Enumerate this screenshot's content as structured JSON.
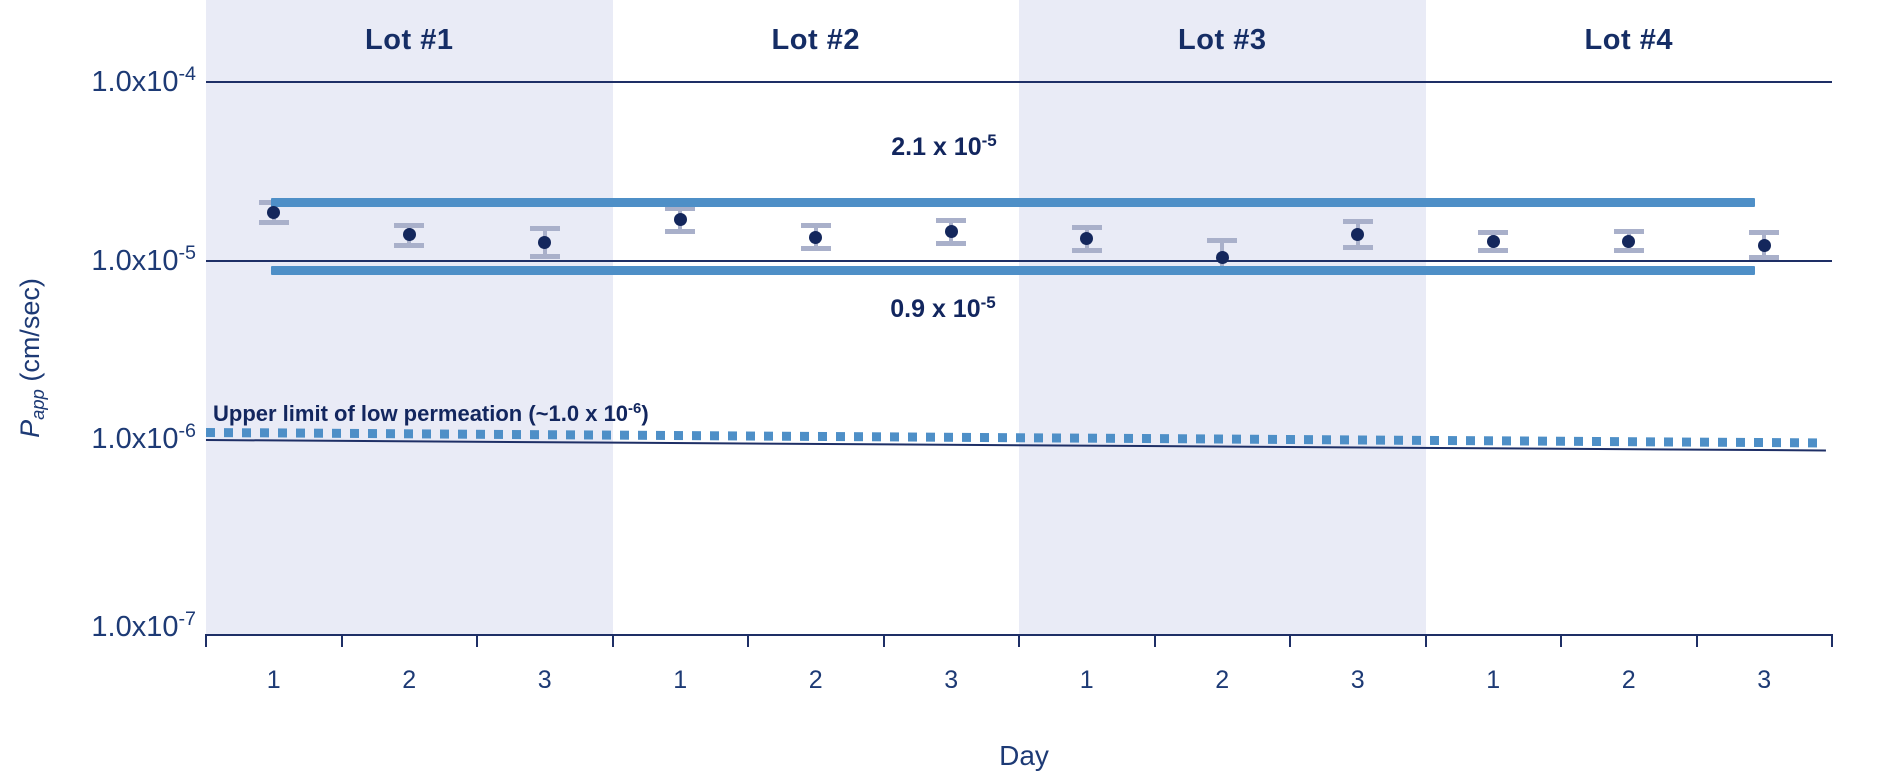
{
  "colors": {
    "background": "#ffffff",
    "band_lavender": "#e9ebf6",
    "gridline_navy": "#1e2f66",
    "text_navy": "#16306b",
    "bold_navy": "#12265e",
    "line_blue": "#4e8fc7",
    "error_gray": "#a9b0ca",
    "dot_navy": "#14275c"
  },
  "lots": [
    {
      "label": "Lot #1",
      "days": [
        "1",
        "2",
        "3"
      ]
    },
    {
      "label": "Lot #2",
      "days": [
        "1",
        "2",
        "3"
      ]
    },
    {
      "label": "Lot #3",
      "days": [
        "1",
        "2",
        "3"
      ]
    },
    {
      "label": "Lot #4",
      "days": [
        "1",
        "2",
        "3"
      ]
    }
  ],
  "y_axis": {
    "title_p": "P",
    "title_sub": "app",
    "title_rest": " (cm/sec)",
    "ticks": [
      {
        "mantissa": "1.0x10",
        "exp": "-4",
        "value": 0.0001
      },
      {
        "mantissa": "1.0x10",
        "exp": "-5",
        "value": 1e-05
      },
      {
        "mantissa": "1.0x10",
        "exp": "-6",
        "value": 1e-06
      },
      {
        "mantissa": "1.0x10",
        "exp": "-7",
        "value": 1e-07
      }
    ]
  },
  "x_axis": {
    "title": "Day"
  },
  "chart_data": {
    "type": "scatter",
    "y_scale": "log",
    "ylim": [
      1e-07,
      0.0001
    ],
    "ylabel": "Papp (cm/sec)",
    "xlabel": "Day",
    "grid": "horizontal-decades",
    "lot_labels": [
      "Lot #1",
      "Lot #2",
      "Lot #3",
      "Lot #4"
    ],
    "x_categories": [
      "1",
      "2",
      "3",
      "1",
      "2",
      "3",
      "1",
      "2",
      "3",
      "1",
      "2",
      "3"
    ],
    "series": [
      {
        "name": "Lot #1",
        "points": [
          {
            "day": 1,
            "value": 1.85e-05,
            "err_hi": 2.1e-05,
            "err_lo": 1.64e-05
          },
          {
            "day": 2,
            "value": 1.39e-05,
            "err_hi": 1.57e-05,
            "err_lo": 1.22e-05
          },
          {
            "day": 3,
            "value": 1.26e-05,
            "err_hi": 1.52e-05,
            "err_lo": 1.05e-05
          }
        ]
      },
      {
        "name": "Lot #2",
        "points": [
          {
            "day": 1,
            "value": 1.69e-05,
            "err_hi": 1.96e-05,
            "err_lo": 1.46e-05
          },
          {
            "day": 2,
            "value": 1.35e-05,
            "err_hi": 1.57e-05,
            "err_lo": 1.17e-05
          },
          {
            "day": 3,
            "value": 1.45e-05,
            "err_hi": 1.68e-05,
            "err_lo": 1.25e-05
          }
        ]
      },
      {
        "name": "Lot #3",
        "points": [
          {
            "day": 1,
            "value": 1.32e-05,
            "err_hi": 1.53e-05,
            "err_lo": 1.14e-05
          },
          {
            "day": 2,
            "value": 1.04e-05,
            "err_hi": 1.3e-05,
            "err_lo": 8.9e-06
          },
          {
            "day": 3,
            "value": 1.39e-05,
            "err_hi": 1.66e-05,
            "err_lo": 1.18e-05
          }
        ]
      },
      {
        "name": "Lot #4",
        "points": [
          {
            "day": 1,
            "value": 1.27e-05,
            "err_hi": 1.44e-05,
            "err_lo": 1.14e-05
          },
          {
            "day": 2,
            "value": 1.27e-05,
            "err_hi": 1.45e-05,
            "err_lo": 1.14e-05
          },
          {
            "day": 3,
            "value": 1.22e-05,
            "err_hi": 1.43e-05,
            "err_lo": 1.04e-05
          }
        ]
      }
    ],
    "reference_lines": [
      {
        "id": "upper",
        "label_mantissa": "2.1 x 10",
        "label_exp": "-5",
        "value": 2.1e-05,
        "style": "solid"
      },
      {
        "id": "lower",
        "label_mantissa": "0.9 x 10",
        "label_exp": "-5",
        "value": 9e-06,
        "style": "solid"
      },
      {
        "id": "limit",
        "label_prefix": "Upper limit of low permeation (~1.0 x 10",
        "label_exp": "-6",
        "label_suffix": ")",
        "value": 1e-06,
        "style": "dashed"
      }
    ]
  }
}
